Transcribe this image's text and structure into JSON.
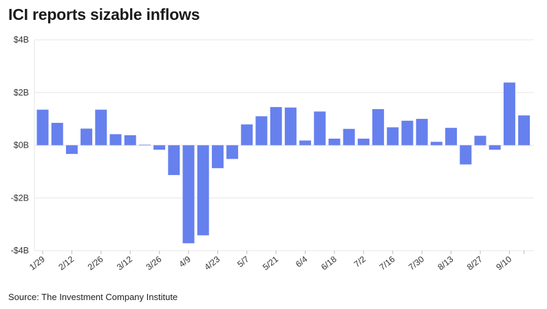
{
  "title": "ICI reports sizable inflows",
  "source": "Source: The Investment Company Institute",
  "chart_data": {
    "type": "bar",
    "title": "ICI reports sizable inflows",
    "xlabel": "",
    "ylabel": "",
    "ylim": [
      -4,
      4
    ],
    "y_ticks": [
      4,
      2,
      0,
      -2,
      -4
    ],
    "y_tick_labels": [
      "$4B",
      "$2B",
      "$0B",
      "-$2B",
      "-$4B"
    ],
    "x_tick_labels": [
      "1/29",
      "2/12",
      "2/26",
      "3/12",
      "3/26",
      "4/9",
      "4/23",
      "5/7",
      "5/21",
      "6/4",
      "6/18",
      "7/2",
      "7/16",
      "7/30",
      "8/13",
      "8/27",
      "9/10"
    ],
    "grid": true,
    "bar_color": "#6680ee",
    "values": [
      1.35,
      0.85,
      -0.33,
      0.63,
      1.35,
      0.42,
      0.38,
      0.02,
      -0.17,
      -1.13,
      -3.72,
      -3.42,
      -0.87,
      -0.52,
      0.79,
      1.1,
      1.45,
      1.43,
      0.18,
      1.28,
      0.25,
      0.62,
      0.25,
      1.37,
      0.68,
      0.93,
      1.0,
      0.13,
      0.66,
      -0.73,
      0.36,
      -0.17,
      2.38,
      1.13
    ]
  }
}
